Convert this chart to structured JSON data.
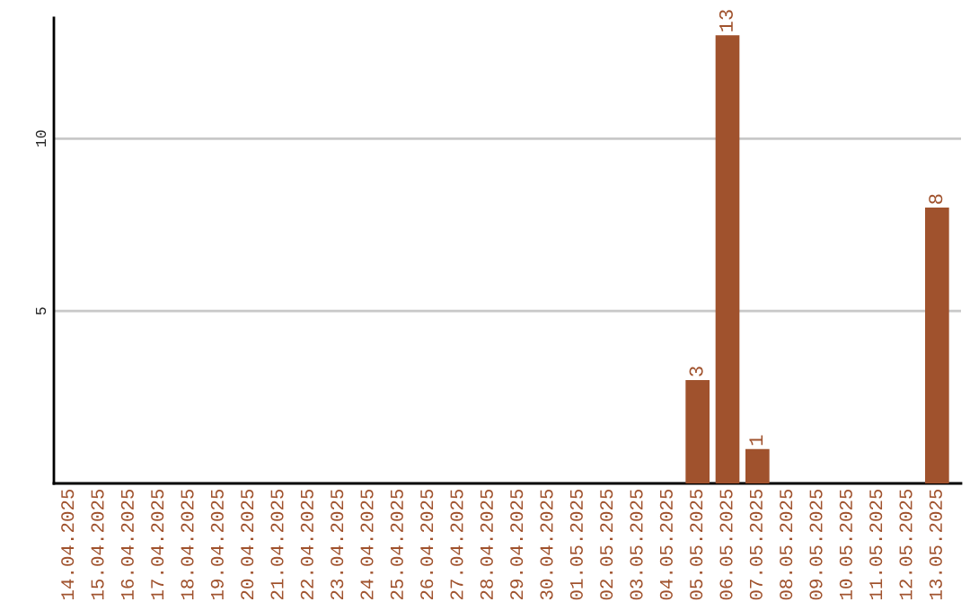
{
  "chart_data": {
    "type": "bar",
    "categories": [
      "14.04.2025",
      "15.04.2025",
      "16.04.2025",
      "17.04.2025",
      "18.04.2025",
      "19.04.2025",
      "20.04.2025",
      "21.04.2025",
      "22.04.2025",
      "23.04.2025",
      "24.04.2025",
      "25.04.2025",
      "26.04.2025",
      "27.04.2025",
      "28.04.2025",
      "29.04.2025",
      "30.04.2025",
      "01.05.2025",
      "02.05.2025",
      "03.05.2025",
      "04.05.2025",
      "05.05.2025",
      "06.05.2025",
      "07.05.2025",
      "08.05.2025",
      "09.05.2025",
      "10.05.2025",
      "11.05.2025",
      "12.05.2025",
      "13.05.2025"
    ],
    "values": [
      0,
      0,
      0,
      0,
      0,
      0,
      0,
      0,
      0,
      0,
      0,
      0,
      0,
      0,
      0,
      0,
      0,
      0,
      0,
      0,
      0,
      3,
      13,
      1,
      0,
      0,
      0,
      0,
      0,
      8
    ],
    "value_labels": [
      null,
      null,
      null,
      null,
      null,
      null,
      null,
      null,
      null,
      null,
      null,
      null,
      null,
      null,
      null,
      null,
      null,
      null,
      null,
      null,
      null,
      "3",
      "13",
      "1",
      null,
      null,
      null,
      null,
      null,
      "8"
    ],
    "color": "#a0522d",
    "ylim": [
      0,
      13.5
    ],
    "yticks": [
      5,
      10
    ],
    "grid": "y",
    "legend": false
  }
}
